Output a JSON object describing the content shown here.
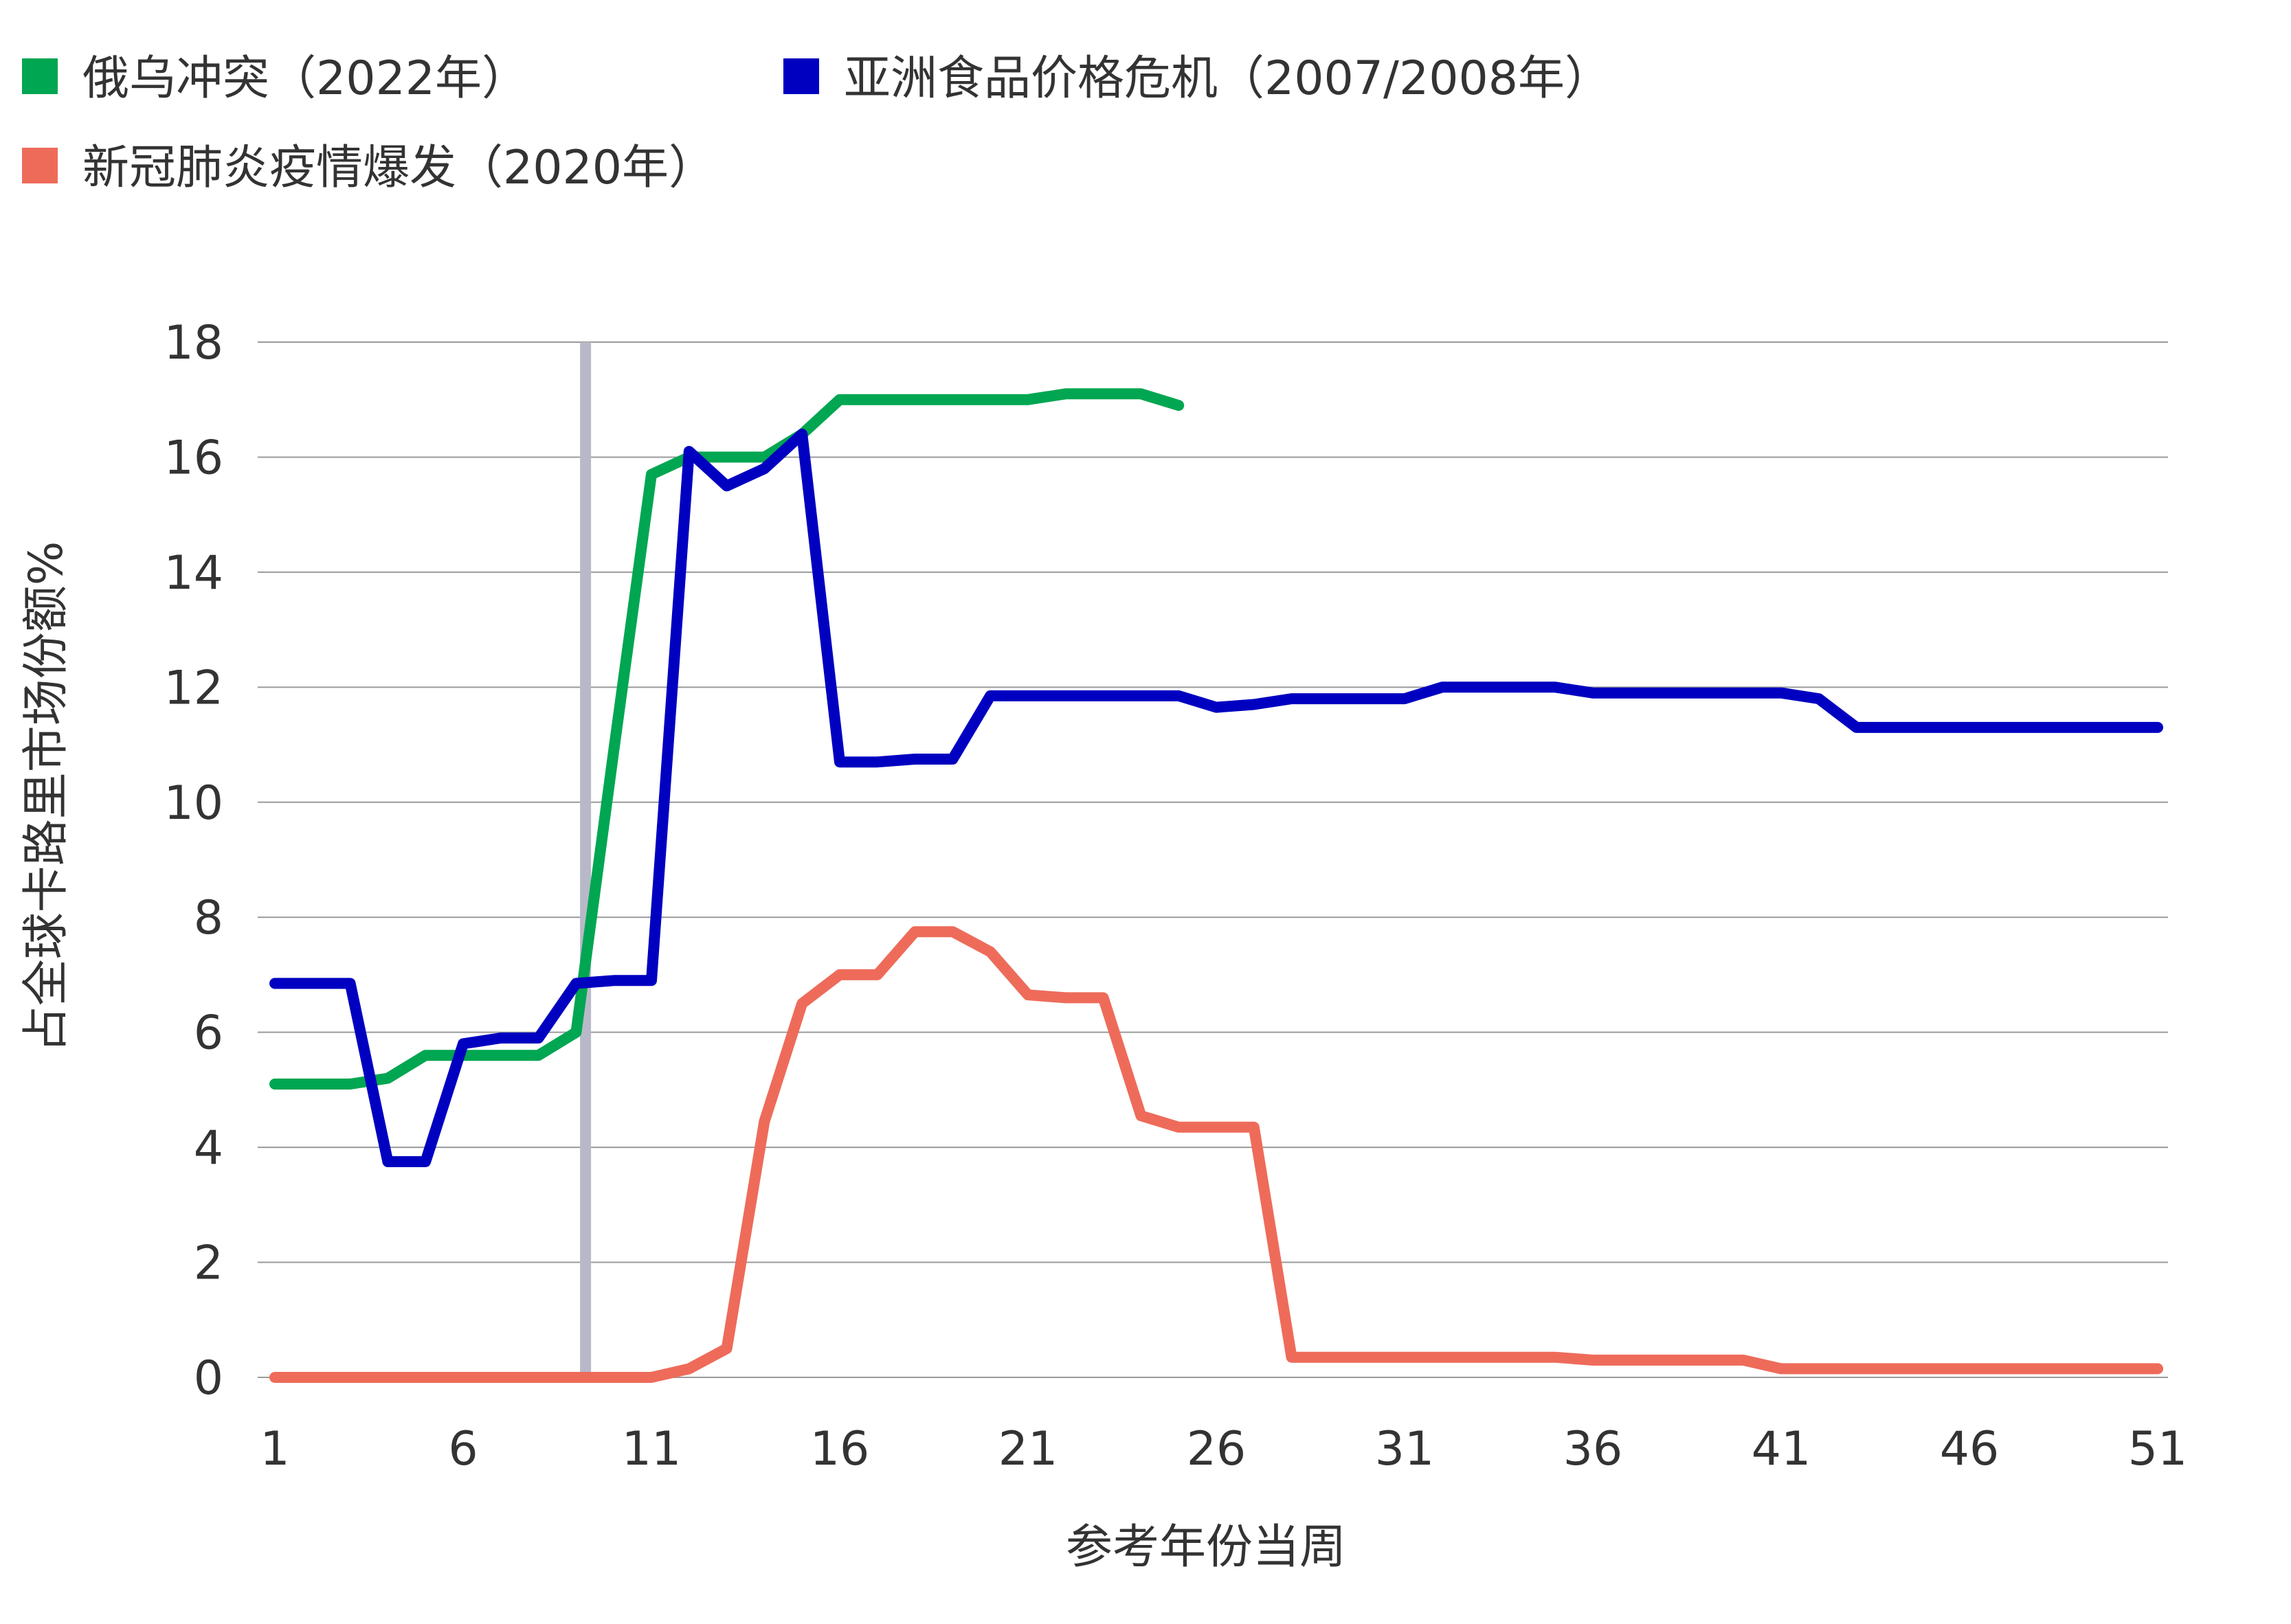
{
  "chart_data": {
    "type": "line",
    "title": "",
    "xlabel": "参考年份当周",
    "ylabel": "占全球卡路里市场份额%",
    "xlim": [
      1,
      51
    ],
    "ylim": [
      0,
      18
    ],
    "xticks": [
      1,
      6,
      11,
      16,
      21,
      26,
      31,
      36,
      41,
      46,
      51
    ],
    "yticks": [
      0,
      2,
      4,
      6,
      8,
      10,
      12,
      14,
      16,
      18
    ],
    "grid": true,
    "legend_position": "top-left",
    "reference_line_x": 9.25,
    "reference_line_color": "#b8b9c8",
    "series": [
      {
        "name": "俄乌冲突（2022年）",
        "color": "#00a651",
        "x": [
          1,
          2,
          3,
          4,
          5,
          6,
          7,
          8,
          9,
          10,
          11,
          12,
          13,
          14,
          15,
          16,
          17,
          18,
          19,
          20,
          21,
          22,
          23,
          24,
          25
        ],
        "y": [
          5.1,
          5.1,
          5.1,
          5.2,
          5.6,
          5.6,
          5.6,
          5.6,
          6.0,
          10.9,
          15.7,
          16.0,
          16.0,
          16.0,
          16.4,
          17.0,
          17.0,
          17.0,
          17.0,
          17.0,
          17.0,
          17.1,
          17.1,
          17.1,
          16.9
        ]
      },
      {
        "name": "亚洲食品价格危机（2007/2008年）",
        "color": "#0000c0",
        "x": [
          1,
          2,
          3,
          4,
          5,
          6,
          7,
          8,
          9,
          10,
          11,
          12,
          13,
          14,
          15,
          16,
          17,
          18,
          19,
          20,
          21,
          22,
          23,
          24,
          25,
          26,
          27,
          28,
          29,
          30,
          31,
          32,
          33,
          34,
          35,
          36,
          37,
          38,
          39,
          40,
          41,
          42,
          43,
          44,
          45,
          46,
          47,
          48,
          49,
          50,
          51
        ],
        "y": [
          6.85,
          6.85,
          6.85,
          3.75,
          3.75,
          5.8,
          5.9,
          5.9,
          6.85,
          6.9,
          6.9,
          16.1,
          15.5,
          15.8,
          16.4,
          10.7,
          10.7,
          10.75,
          10.75,
          11.85,
          11.85,
          11.85,
          11.85,
          11.85,
          11.85,
          11.65,
          11.7,
          11.8,
          11.8,
          11.8,
          11.8,
          12.0,
          12.0,
          12.0,
          12.0,
          11.9,
          11.9,
          11.9,
          11.9,
          11.9,
          11.9,
          11.8,
          11.3,
          11.3,
          11.3,
          11.3,
          11.3,
          11.3,
          11.3,
          11.3,
          11.3
        ]
      },
      {
        "name": "新冠肺炎疫情爆发（2020年）",
        "color": "#ee6b5a",
        "x": [
          1,
          2,
          3,
          4,
          5,
          6,
          7,
          8,
          9,
          10,
          11,
          12,
          13,
          14,
          15,
          16,
          17,
          18,
          19,
          20,
          21,
          22,
          23,
          24,
          25,
          26,
          27,
          28,
          29,
          30,
          31,
          32,
          33,
          34,
          35,
          36,
          37,
          38,
          39,
          40,
          41,
          42,
          43,
          44,
          45,
          46,
          47,
          48,
          49,
          50,
          51
        ],
        "y": [
          0,
          0,
          0,
          0,
          0,
          0,
          0,
          0,
          0,
          0,
          0,
          0.15,
          0.5,
          4.45,
          6.5,
          7.0,
          7.0,
          7.75,
          7.75,
          7.4,
          6.65,
          6.6,
          6.6,
          4.55,
          4.35,
          4.35,
          4.35,
          0.35,
          0.35,
          0.35,
          0.35,
          0.35,
          0.35,
          0.35,
          0.35,
          0.3,
          0.3,
          0.3,
          0.3,
          0.3,
          0.15,
          0.15,
          0.15,
          0.15,
          0.15,
          0.15,
          0.15,
          0.15,
          0.15,
          0.15,
          0.15
        ]
      }
    ]
  }
}
